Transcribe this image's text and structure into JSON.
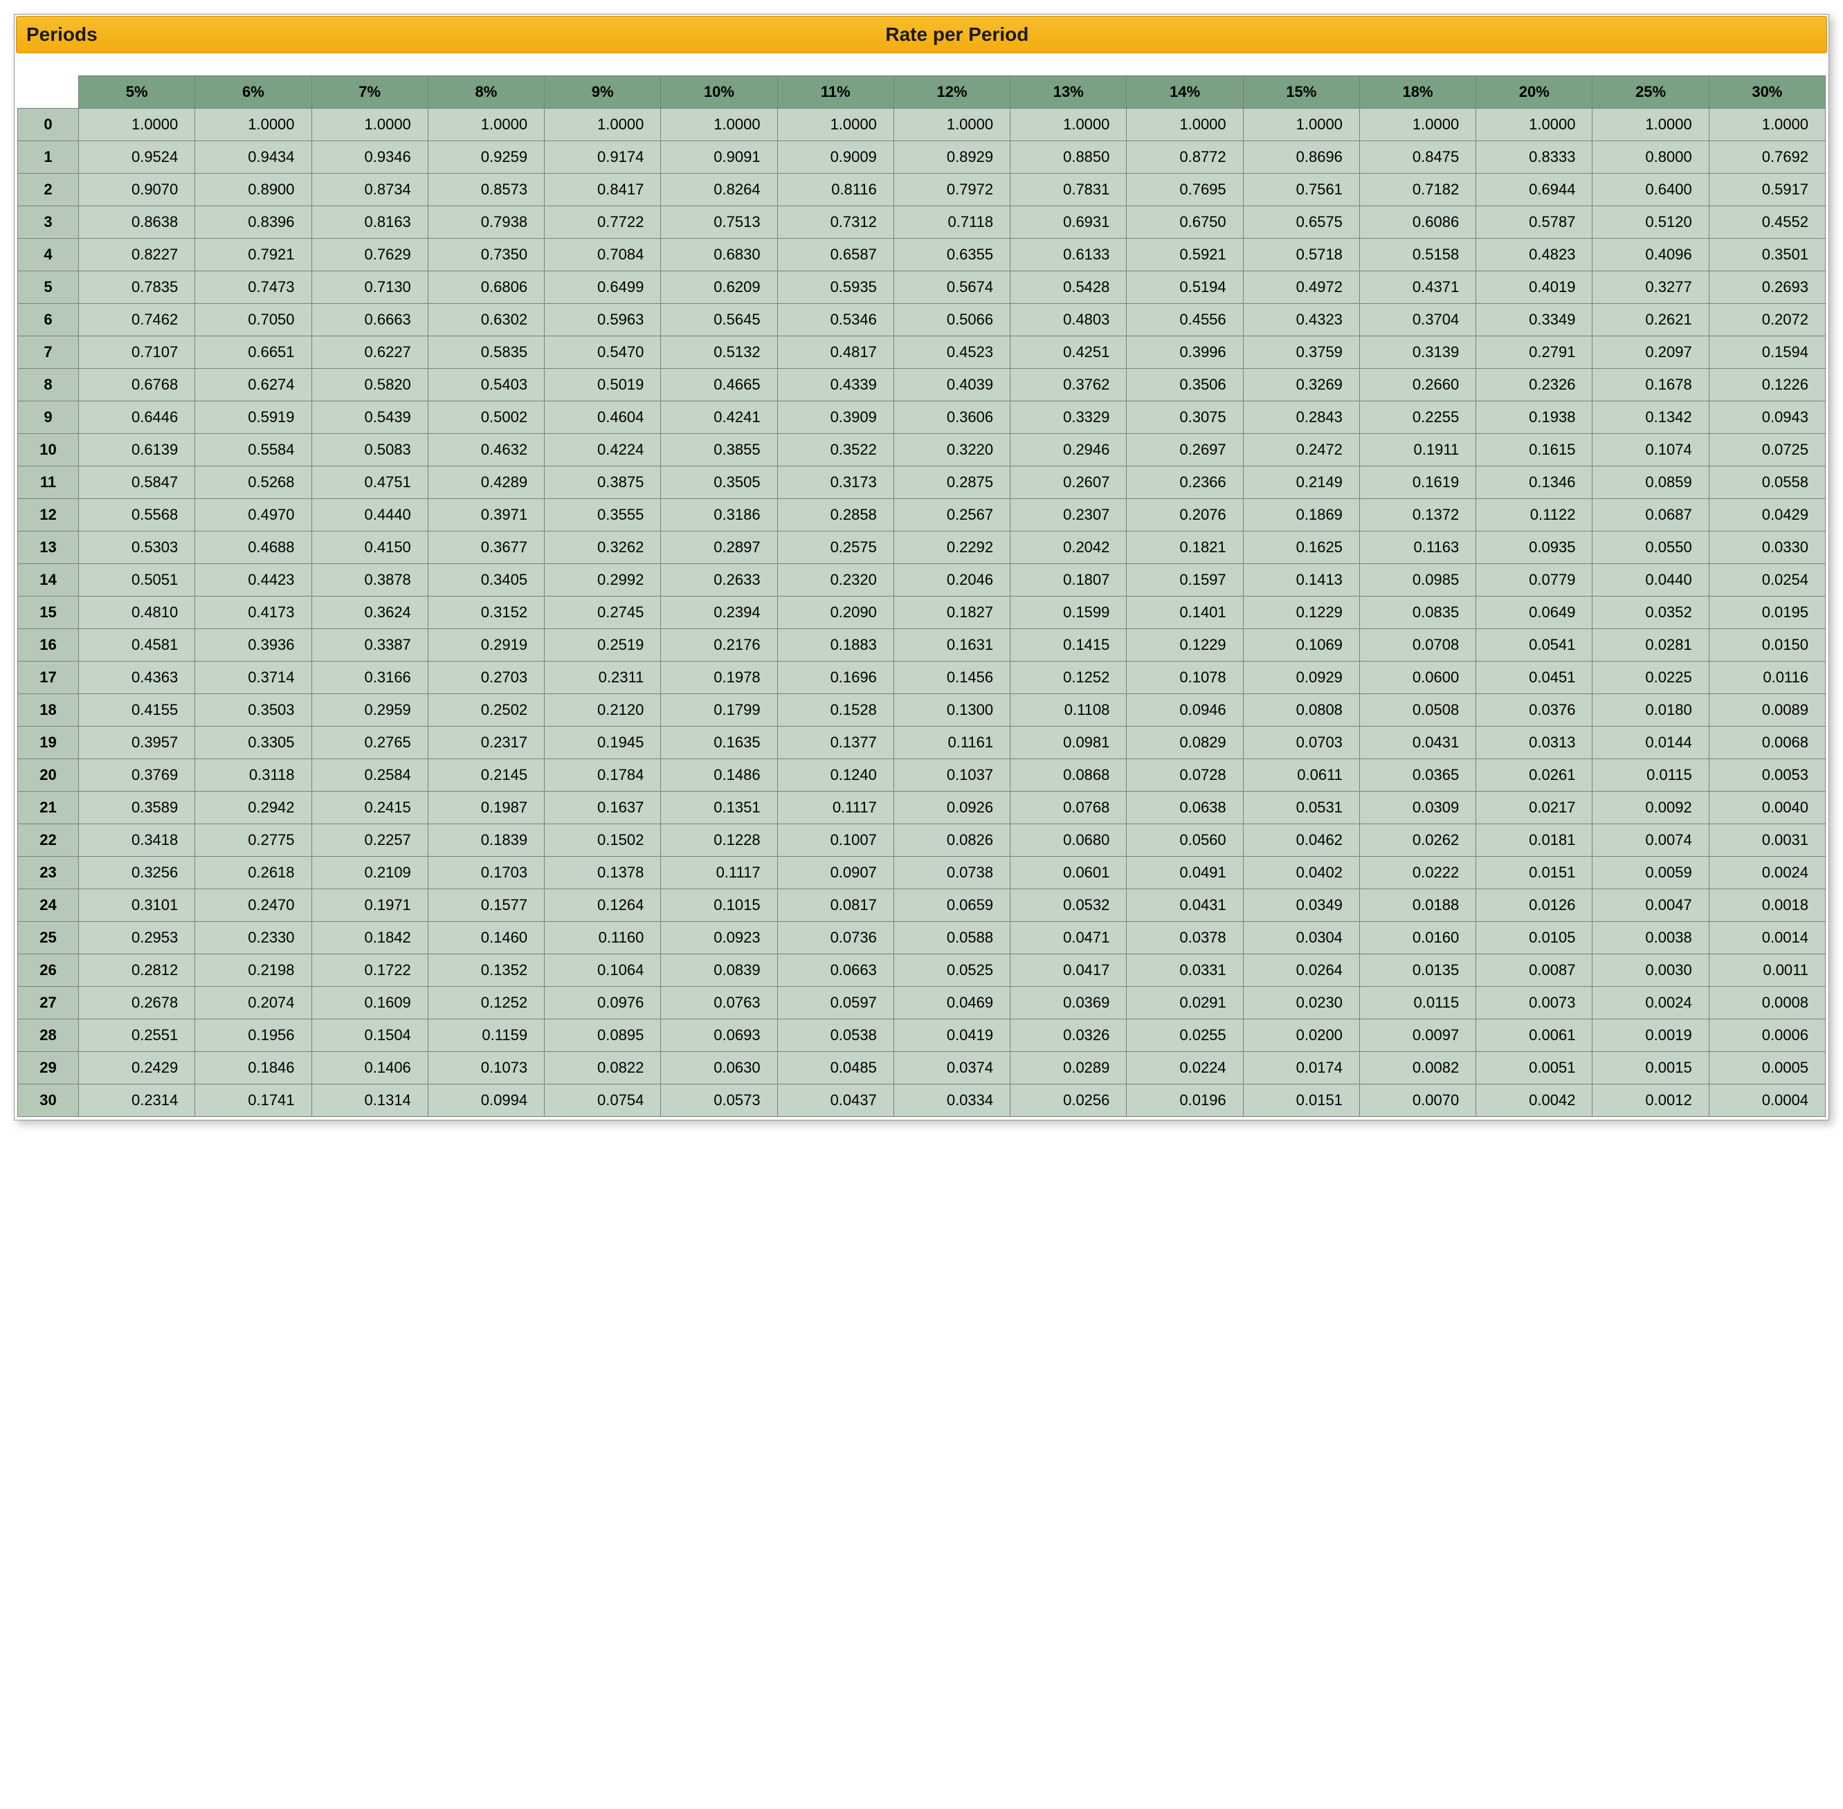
{
  "header": {
    "periods_label": "Periods",
    "rate_label": "Rate per Period"
  },
  "table": {
    "type": "table",
    "col_header_bg": "#7aa183",
    "row_header_bg": "#b6c9b8",
    "data_cell_bg": "#c4d4c6",
    "border_color": "#7f7f7f",
    "title_bar_bg": "#f5b61e",
    "header_fontsize": 28,
    "cell_fontsize": 22,
    "columns": [
      "5%",
      "6%",
      "7%",
      "8%",
      "9%",
      "10%",
      "11%",
      "12%",
      "13%",
      "14%",
      "15%",
      "18%",
      "20%",
      "25%",
      "30%"
    ],
    "periods": [
      "0",
      "1",
      "2",
      "3",
      "4",
      "5",
      "6",
      "7",
      "8",
      "9",
      "10",
      "11",
      "12",
      "13",
      "14",
      "15",
      "16",
      "17",
      "18",
      "19",
      "20",
      "21",
      "22",
      "23",
      "24",
      "25",
      "26",
      "27",
      "28",
      "29",
      "30"
    ],
    "rows": [
      [
        "1.0000",
        "1.0000",
        "1.0000",
        "1.0000",
        "1.0000",
        "1.0000",
        "1.0000",
        "1.0000",
        "1.0000",
        "1.0000",
        "1.0000",
        "1.0000",
        "1.0000",
        "1.0000",
        "1.0000"
      ],
      [
        "0.9524",
        "0.9434",
        "0.9346",
        "0.9259",
        "0.9174",
        "0.9091",
        "0.9009",
        "0.8929",
        "0.8850",
        "0.8772",
        "0.8696",
        "0.8475",
        "0.8333",
        "0.8000",
        "0.7692"
      ],
      [
        "0.9070",
        "0.8900",
        "0.8734",
        "0.8573",
        "0.8417",
        "0.8264",
        "0.8116",
        "0.7972",
        "0.7831",
        "0.7695",
        "0.7561",
        "0.7182",
        "0.6944",
        "0.6400",
        "0.5917"
      ],
      [
        "0.8638",
        "0.8396",
        "0.8163",
        "0.7938",
        "0.7722",
        "0.7513",
        "0.7312",
        "0.7118",
        "0.6931",
        "0.6750",
        "0.6575",
        "0.6086",
        "0.5787",
        "0.5120",
        "0.4552"
      ],
      [
        "0.8227",
        "0.7921",
        "0.7629",
        "0.7350",
        "0.7084",
        "0.6830",
        "0.6587",
        "0.6355",
        "0.6133",
        "0.5921",
        "0.5718",
        "0.5158",
        "0.4823",
        "0.4096",
        "0.3501"
      ],
      [
        "0.7835",
        "0.7473",
        "0.7130",
        "0.6806",
        "0.6499",
        "0.6209",
        "0.5935",
        "0.5674",
        "0.5428",
        "0.5194",
        "0.4972",
        "0.4371",
        "0.4019",
        "0.3277",
        "0.2693"
      ],
      [
        "0.7462",
        "0.7050",
        "0.6663",
        "0.6302",
        "0.5963",
        "0.5645",
        "0.5346",
        "0.5066",
        "0.4803",
        "0.4556",
        "0.4323",
        "0.3704",
        "0.3349",
        "0.2621",
        "0.2072"
      ],
      [
        "0.7107",
        "0.6651",
        "0.6227",
        "0.5835",
        "0.5470",
        "0.5132",
        "0.4817",
        "0.4523",
        "0.4251",
        "0.3996",
        "0.3759",
        "0.3139",
        "0.2791",
        "0.2097",
        "0.1594"
      ],
      [
        "0.6768",
        "0.6274",
        "0.5820",
        "0.5403",
        "0.5019",
        "0.4665",
        "0.4339",
        "0.4039",
        "0.3762",
        "0.3506",
        "0.3269",
        "0.2660",
        "0.2326",
        "0.1678",
        "0.1226"
      ],
      [
        "0.6446",
        "0.5919",
        "0.5439",
        "0.5002",
        "0.4604",
        "0.4241",
        "0.3909",
        "0.3606",
        "0.3329",
        "0.3075",
        "0.2843",
        "0.2255",
        "0.1938",
        "0.1342",
        "0.0943"
      ],
      [
        "0.6139",
        "0.5584",
        "0.5083",
        "0.4632",
        "0.4224",
        "0.3855",
        "0.3522",
        "0.3220",
        "0.2946",
        "0.2697",
        "0.2472",
        "0.1911",
        "0.1615",
        "0.1074",
        "0.0725"
      ],
      [
        "0.5847",
        "0.5268",
        "0.4751",
        "0.4289",
        "0.3875",
        "0.3505",
        "0.3173",
        "0.2875",
        "0.2607",
        "0.2366",
        "0.2149",
        "0.1619",
        "0.1346",
        "0.0859",
        "0.0558"
      ],
      [
        "0.5568",
        "0.4970",
        "0.4440",
        "0.3971",
        "0.3555",
        "0.3186",
        "0.2858",
        "0.2567",
        "0.2307",
        "0.2076",
        "0.1869",
        "0.1372",
        "0.1122",
        "0.0687",
        "0.0429"
      ],
      [
        "0.5303",
        "0.4688",
        "0.4150",
        "0.3677",
        "0.3262",
        "0.2897",
        "0.2575",
        "0.2292",
        "0.2042",
        "0.1821",
        "0.1625",
        "0.1163",
        "0.0935",
        "0.0550",
        "0.0330"
      ],
      [
        "0.5051",
        "0.4423",
        "0.3878",
        "0.3405",
        "0.2992",
        "0.2633",
        "0.2320",
        "0.2046",
        "0.1807",
        "0.1597",
        "0.1413",
        "0.0985",
        "0.0779",
        "0.0440",
        "0.0254"
      ],
      [
        "0.4810",
        "0.4173",
        "0.3624",
        "0.3152",
        "0.2745",
        "0.2394",
        "0.2090",
        "0.1827",
        "0.1599",
        "0.1401",
        "0.1229",
        "0.0835",
        "0.0649",
        "0.0352",
        "0.0195"
      ],
      [
        "0.4581",
        "0.3936",
        "0.3387",
        "0.2919",
        "0.2519",
        "0.2176",
        "0.1883",
        "0.1631",
        "0.1415",
        "0.1229",
        "0.1069",
        "0.0708",
        "0.0541",
        "0.0281",
        "0.0150"
      ],
      [
        "0.4363",
        "0.3714",
        "0.3166",
        "0.2703",
        "0.2311",
        "0.1978",
        "0.1696",
        "0.1456",
        "0.1252",
        "0.1078",
        "0.0929",
        "0.0600",
        "0.0451",
        "0.0225",
        "0.0116"
      ],
      [
        "0.4155",
        "0.3503",
        "0.2959",
        "0.2502",
        "0.2120",
        "0.1799",
        "0.1528",
        "0.1300",
        "0.1108",
        "0.0946",
        "0.0808",
        "0.0508",
        "0.0376",
        "0.0180",
        "0.0089"
      ],
      [
        "0.3957",
        "0.3305",
        "0.2765",
        "0.2317",
        "0.1945",
        "0.1635",
        "0.1377",
        "0.1161",
        "0.0981",
        "0.0829",
        "0.0703",
        "0.0431",
        "0.0313",
        "0.0144",
        "0.0068"
      ],
      [
        "0.3769",
        "0.3118",
        "0.2584",
        "0.2145",
        "0.1784",
        "0.1486",
        "0.1240",
        "0.1037",
        "0.0868",
        "0.0728",
        "0.0611",
        "0.0365",
        "0.0261",
        "0.0115",
        "0.0053"
      ],
      [
        "0.3589",
        "0.2942",
        "0.2415",
        "0.1987",
        "0.1637",
        "0.1351",
        "0.1117",
        "0.0926",
        "0.0768",
        "0.0638",
        "0.0531",
        "0.0309",
        "0.0217",
        "0.0092",
        "0.0040"
      ],
      [
        "0.3418",
        "0.2775",
        "0.2257",
        "0.1839",
        "0.1502",
        "0.1228",
        "0.1007",
        "0.0826",
        "0.0680",
        "0.0560",
        "0.0462",
        "0.0262",
        "0.0181",
        "0.0074",
        "0.0031"
      ],
      [
        "0.3256",
        "0.2618",
        "0.2109",
        "0.1703",
        "0.1378",
        "0.1117",
        "0.0907",
        "0.0738",
        "0.0601",
        "0.0491",
        "0.0402",
        "0.0222",
        "0.0151",
        "0.0059",
        "0.0024"
      ],
      [
        "0.3101",
        "0.2470",
        "0.1971",
        "0.1577",
        "0.1264",
        "0.1015",
        "0.0817",
        "0.0659",
        "0.0532",
        "0.0431",
        "0.0349",
        "0.0188",
        "0.0126",
        "0.0047",
        "0.0018"
      ],
      [
        "0.2953",
        "0.2330",
        "0.1842",
        "0.1460",
        "0.1160",
        "0.0923",
        "0.0736",
        "0.0588",
        "0.0471",
        "0.0378",
        "0.0304",
        "0.0160",
        "0.0105",
        "0.0038",
        "0.0014"
      ],
      [
        "0.2812",
        "0.2198",
        "0.1722",
        "0.1352",
        "0.1064",
        "0.0839",
        "0.0663",
        "0.0525",
        "0.0417",
        "0.0331",
        "0.0264",
        "0.0135",
        "0.0087",
        "0.0030",
        "0.0011"
      ],
      [
        "0.2678",
        "0.2074",
        "0.1609",
        "0.1252",
        "0.0976",
        "0.0763",
        "0.0597",
        "0.0469",
        "0.0369",
        "0.0291",
        "0.0230",
        "0.0115",
        "0.0073",
        "0.0024",
        "0.0008"
      ],
      [
        "0.2551",
        "0.1956",
        "0.1504",
        "0.1159",
        "0.0895",
        "0.0693",
        "0.0538",
        "0.0419",
        "0.0326",
        "0.0255",
        "0.0200",
        "0.0097",
        "0.0061",
        "0.0019",
        "0.0006"
      ],
      [
        "0.2429",
        "0.1846",
        "0.1406",
        "0.1073",
        "0.0822",
        "0.0630",
        "0.0485",
        "0.0374",
        "0.0289",
        "0.0224",
        "0.0174",
        "0.0082",
        "0.0051",
        "0.0015",
        "0.0005"
      ],
      [
        "0.2314",
        "0.1741",
        "0.1314",
        "0.0994",
        "0.0754",
        "0.0573",
        "0.0437",
        "0.0334",
        "0.0256",
        "0.0196",
        "0.0151",
        "0.0070",
        "0.0042",
        "0.0012",
        "0.0004"
      ]
    ]
  }
}
